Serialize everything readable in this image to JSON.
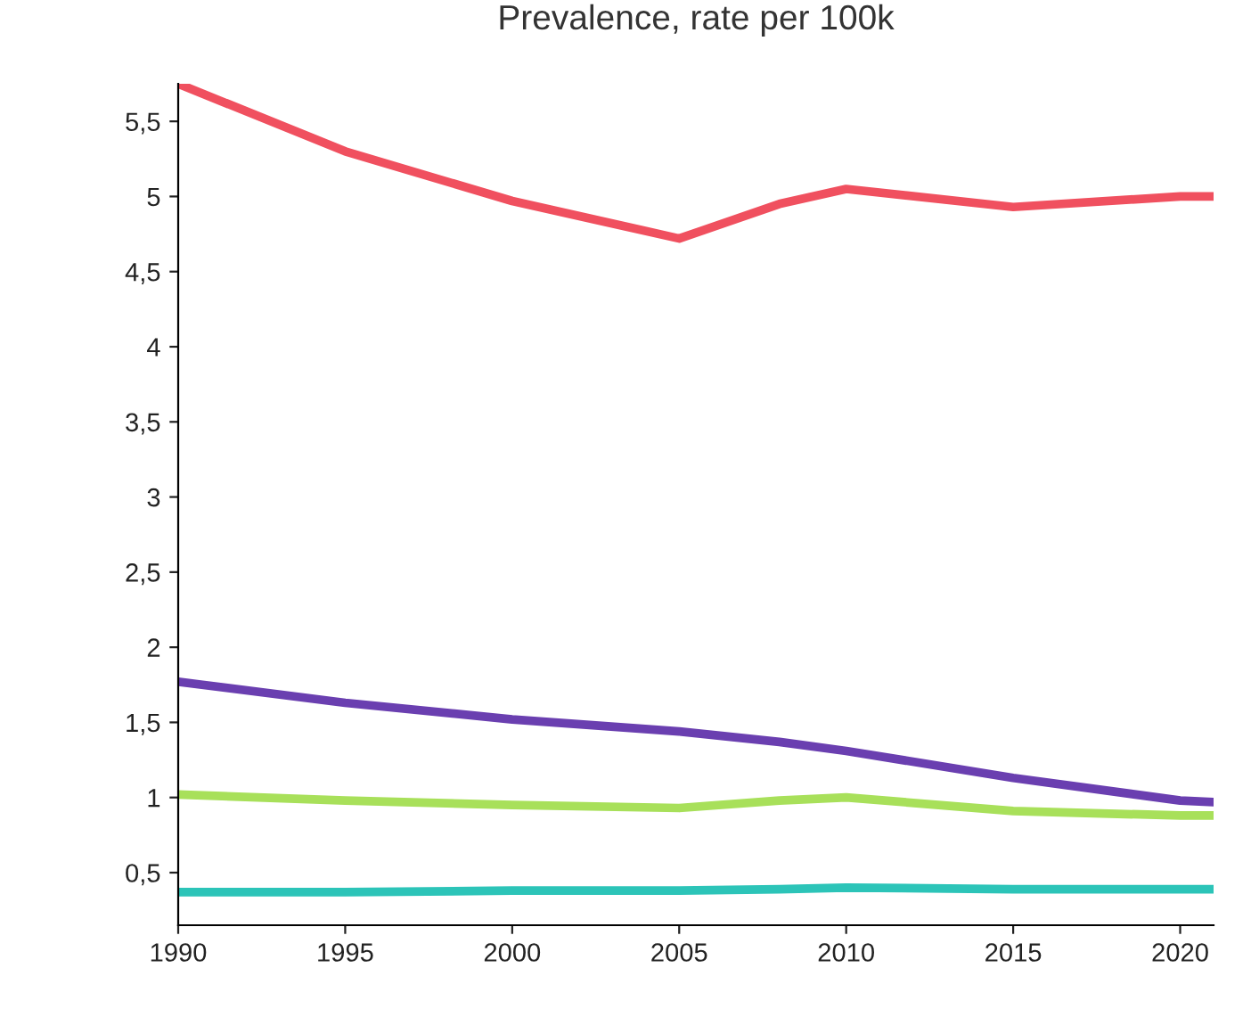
{
  "chart_data": {
    "type": "line",
    "title": "Prevalence, rate per 100k",
    "x": [
      1990,
      1995,
      2000,
      2005,
      2008,
      2010,
      2015,
      2020,
      2021
    ],
    "series": [
      {
        "color": "#f0505f",
        "values": [
          5.75,
          5.3,
          4.97,
          4.72,
          4.95,
          5.05,
          4.93,
          5.0,
          5.0
        ]
      },
      {
        "color": "#6a3fb0",
        "values": [
          1.77,
          1.63,
          1.52,
          1.44,
          1.37,
          1.31,
          1.13,
          0.98,
          0.97
        ]
      },
      {
        "color": "#a8e05a",
        "values": [
          1.02,
          0.98,
          0.95,
          0.93,
          0.98,
          1.0,
          0.91,
          0.88,
          0.88
        ]
      },
      {
        "color": "#2cc4b8",
        "values": [
          0.37,
          0.37,
          0.38,
          0.38,
          0.39,
          0.4,
          0.39,
          0.39,
          0.39
        ]
      }
    ],
    "xlim": [
      1990,
      2021
    ],
    "xticks": [
      1990,
      1995,
      2000,
      2005,
      2010,
      2015,
      2020
    ],
    "ylim": [
      0.15,
      5.75
    ],
    "yticks": [
      {
        "value": 0.5,
        "label": "0,5"
      },
      1,
      {
        "value": 1.5,
        "label": "1,5"
      },
      2,
      {
        "value": 2.5,
        "label": "2,5"
      },
      3,
      {
        "value": 3.5,
        "label": "3,5"
      },
      4,
      {
        "value": 4.5,
        "label": "4,5"
      },
      5,
      {
        "value": 5.5,
        "label": "5,5"
      }
    ],
    "grid": false,
    "marker": "none",
    "line_style": "solid"
  }
}
